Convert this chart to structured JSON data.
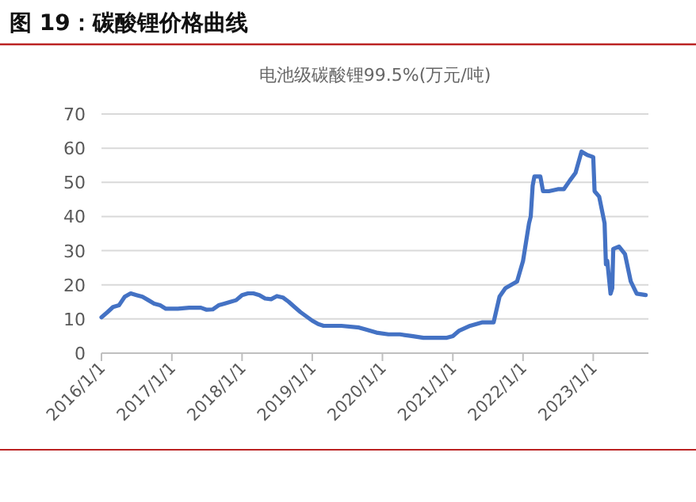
{
  "chart_data": {
    "type": "line",
    "title": "图 19：碳酸锂价格曲线",
    "subtitle": "电池级碳酸锂99.5%(万元/吨)",
    "x": [
      "2016-01-01",
      "2016-02-01",
      "2016-03-01",
      "2016-04-01",
      "2016-05-01",
      "2016-06-01",
      "2016-07-01",
      "2016-08-01",
      "2016-09-01",
      "2016-10-01",
      "2016-11-01",
      "2016-12-01",
      "2017-02-01",
      "2017-04-01",
      "2017-06-01",
      "2017-07-01",
      "2017-08-01",
      "2017-09-01",
      "2017-10-01",
      "2017-11-01",
      "2017-12-01",
      "2018-01-01",
      "2018-02-01",
      "2018-03-01",
      "2018-04-01",
      "2018-05-01",
      "2018-06-01",
      "2018-07-01",
      "2018-08-01",
      "2018-09-01",
      "2018-10-01",
      "2018-11-01",
      "2019-01-01",
      "2019-02-01",
      "2019-03-01",
      "2019-06-01",
      "2019-09-01",
      "2019-10-01",
      "2019-12-01",
      "2020-02-01",
      "2020-04-01",
      "2020-06-01",
      "2020-08-01",
      "2020-10-01",
      "2020-12-01",
      "2021-01-01",
      "2021-02-01",
      "2021-04-01",
      "2021-06-01",
      "2021-08-01",
      "2021-09-01",
      "2021-10-01",
      "2021-12-01",
      "2022-01-01",
      "2022-02-01",
      "2022-02-10",
      "2022-02-20",
      "2022-03-01",
      "2022-04-01",
      "2022-04-15",
      "2022-05-15",
      "2022-07-01",
      "2022-08-01",
      "2022-09-01",
      "2022-10-01",
      "2022-11-01",
      "2022-12-01",
      "2023-01-01",
      "2023-01-08",
      "2023-02-01",
      "2023-03-01",
      "2023-03-08",
      "2023-03-15",
      "2023-04-01",
      "2023-04-10",
      "2023-04-15",
      "2023-05-15",
      "2023-06-15",
      "2023-07-15",
      "2023-08-15",
      "2023-10-01"
    ],
    "series": [
      {
        "color": "#4472c4",
        "values": [
          10.5,
          12,
          13.5,
          14,
          16.5,
          17.5,
          17,
          16.5,
          15.5,
          14.5,
          14,
          13,
          13,
          13.3,
          13.3,
          12.7,
          12.8,
          14,
          14.5,
          15,
          15.5,
          17,
          17.5,
          17.5,
          17,
          16,
          15.8,
          16.7,
          16.3,
          15,
          13.5,
          12,
          9.5,
          8.5,
          8,
          8,
          7.5,
          7,
          6,
          5.5,
          5.5,
          5,
          4.5,
          4.5,
          4.5,
          5,
          6.5,
          8,
          9,
          9,
          16.6,
          19,
          21,
          27,
          38,
          40,
          49,
          51.7,
          51.7,
          47.4,
          47.4,
          48,
          48,
          50.5,
          52.8,
          59,
          58,
          57.4,
          47.4,
          45.8,
          38,
          26,
          27,
          17.4,
          19,
          30.5,
          31.2,
          29,
          21,
          17.4,
          17
        ]
      }
    ],
    "xlim": [
      "2016-01-01",
      "2023-10-15"
    ],
    "xticks": [
      {
        "value": "2016-01-01",
        "label": "2016/1/1"
      },
      {
        "value": "2017-01-01",
        "label": "2017/1/1"
      },
      {
        "value": "2018-01-01",
        "label": "2018/1/1"
      },
      {
        "value": "2019-01-01",
        "label": "2019/1/1"
      },
      {
        "value": "2020-01-01",
        "label": "2020/1/1"
      },
      {
        "value": "2021-01-01",
        "label": "2021/1/1"
      },
      {
        "value": "2022-01-01",
        "label": "2022/1/1"
      },
      {
        "value": "2023-01-01",
        "label": "2023/1/1"
      }
    ],
    "ylim": [
      0,
      70
    ],
    "yticks": [
      0,
      10,
      20,
      30,
      40,
      50,
      60,
      70
    ],
    "grid": "y",
    "marker": "none",
    "line_style": "solid"
  }
}
